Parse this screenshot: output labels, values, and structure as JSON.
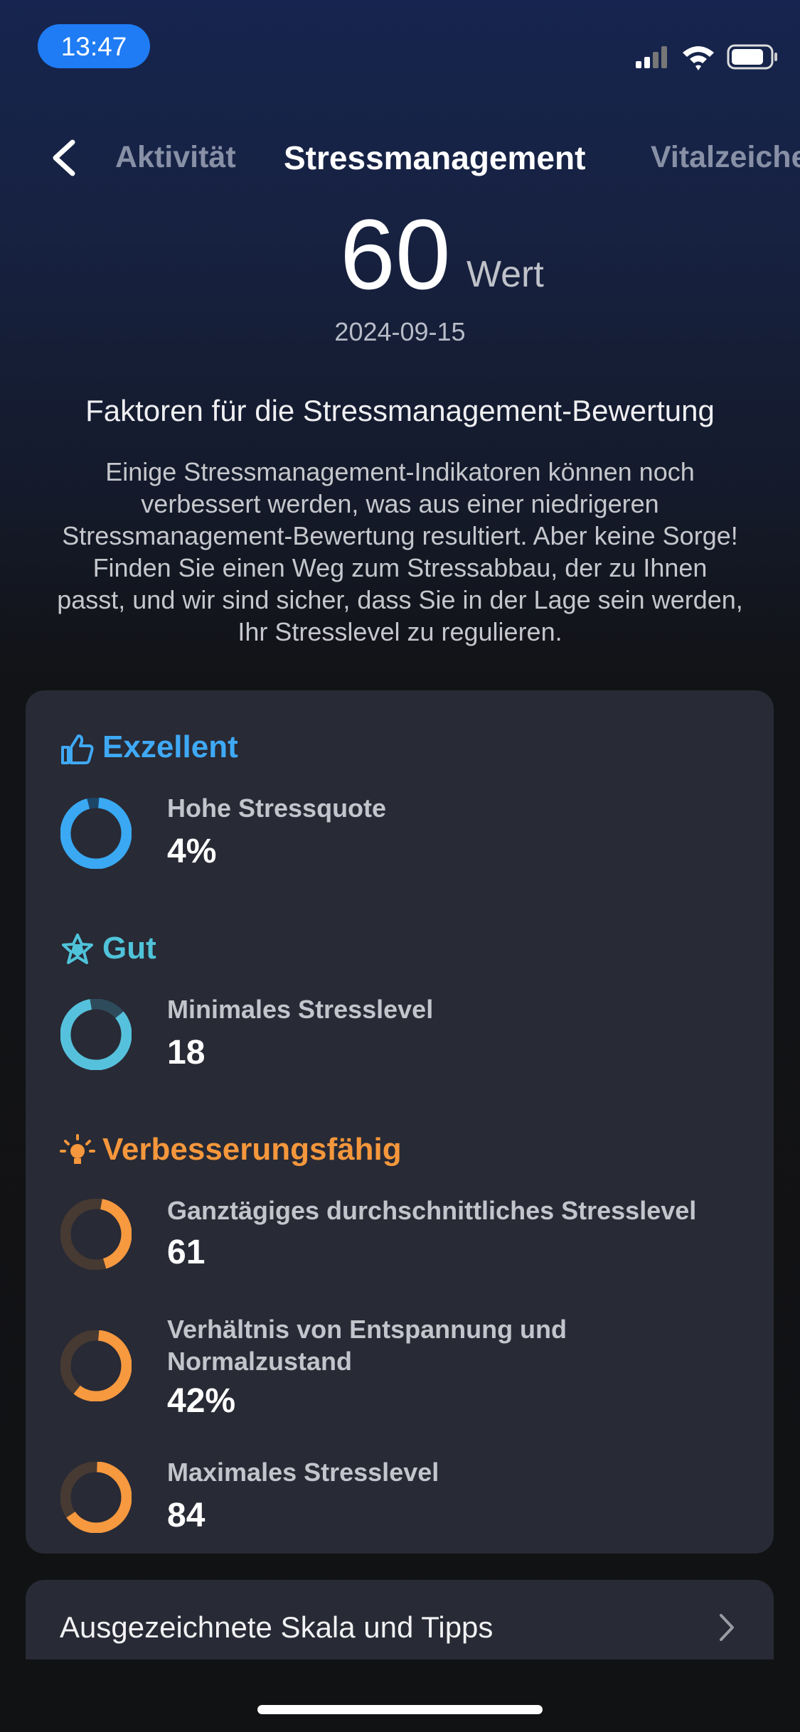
{
  "status_bar": {
    "time": "13:47"
  },
  "tabs": [
    "Aktivität",
    "Stressmanagement",
    "Vitalzeiche"
  ],
  "score": {
    "value": 60,
    "unit": "Wert",
    "date": "2024-09-15"
  },
  "factors": {
    "title": "Faktoren für die Stressmanagement-Bewertung",
    "description": "Einige Stressmanagement-Indikatoren können noch verbessert werden, was aus einer niedrigeren Stressmanagement-Bewertung resultiert. Aber keine Sorge! Finden Sie einen Weg zum Stressabbau, der zu Ihnen passt, und wir sind sicher, dass Sie in der Lage sein werden, Ihr Stresslevel zu regulieren.",
    "groups": [
      {
        "title": "Exzellent",
        "items": [
          {
            "label": "Hohe Stressquote",
            "value": "4%"
          }
        ]
      },
      {
        "title": "Gut",
        "items": [
          {
            "label": "Minimales Stresslevel",
            "value": 18
          }
        ]
      },
      {
        "title": "Verbesserungsfähig",
        "items": [
          {
            "label": "Ganztägiges durchschnittliches Stresslevel",
            "value": 61
          },
          {
            "label": "Verhältnis von Entspannung und Normalzustand",
            "value": "42%"
          },
          {
            "label": "Maximales Stresslevel",
            "value": 84
          }
        ]
      }
    ]
  },
  "footer_link": "Ausgezeichnete Skala und Tipps"
}
